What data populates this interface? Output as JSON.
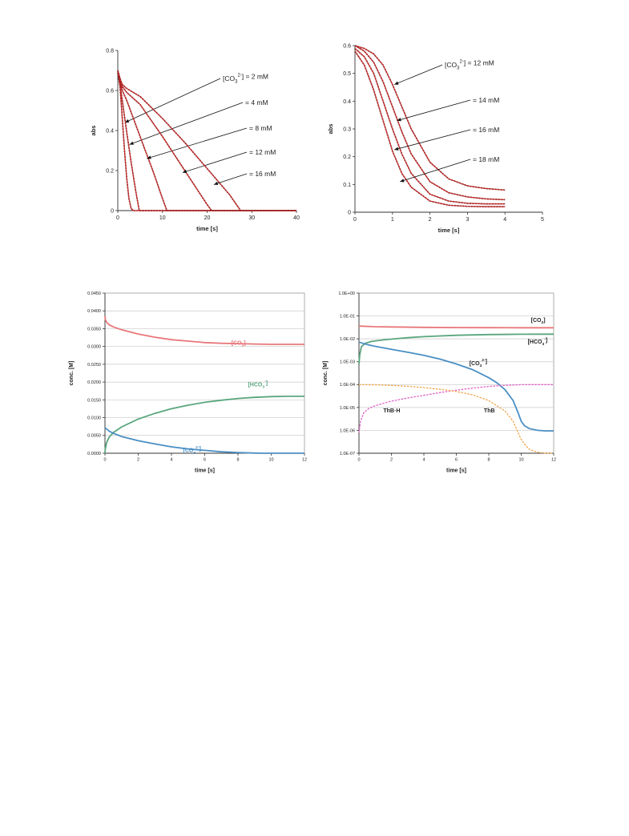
{
  "chart_data": [
    {
      "type": "line",
      "xlabel": "time [s]",
      "ylabel": "abs",
      "xlim": [
        0,
        40
      ],
      "ylim": [
        0,
        0.8
      ],
      "x_ticks": [
        "0",
        "10",
        "20",
        "30",
        "40"
      ],
      "y_ticks": [
        "0",
        "0.2",
        "0.4",
        "0.6",
        "0.8"
      ],
      "grid": false,
      "series": [
        {
          "name": "[CO3 2-] = 2 mM",
          "label_parts": {
            "pre": "[CO",
            "sub": "3",
            "sup": "2-",
            "post": "] = 2 mM"
          },
          "x": [
            0,
            0.5,
            1,
            1.5,
            2,
            2.5,
            3,
            3.5,
            40
          ],
          "y": [
            0.69,
            0.62,
            0.46,
            0.3,
            0.16,
            0.06,
            0.01,
            0.0,
            0.0
          ],
          "arrow_at": [
            1.6,
            0.44
          ]
        },
        {
          "name": "= 4 mM",
          "label_parts": {
            "pre": "= 4 mM"
          },
          "x": [
            0,
            0.5,
            1,
            2,
            3,
            4,
            4.8,
            40
          ],
          "y": [
            0.69,
            0.63,
            0.55,
            0.39,
            0.24,
            0.1,
            0.0,
            0.0
          ],
          "arrow_at": [
            2.6,
            0.33
          ]
        },
        {
          "name": "= 8 mM",
          "label_parts": {
            "pre": "= 8 mM"
          },
          "x": [
            0,
            0.5,
            1,
            2,
            4,
            6,
            8,
            10,
            11,
            40
          ],
          "y": [
            0.7,
            0.65,
            0.6,
            0.55,
            0.43,
            0.31,
            0.19,
            0.06,
            0.0,
            0.0
          ],
          "arrow_at": [
            6.5,
            0.26
          ]
        },
        {
          "name": "= 12 mM",
          "label_parts": {
            "pre": "= 12 mM"
          },
          "x": [
            0,
            0.5,
            1,
            2,
            5,
            10,
            15,
            20,
            21,
            40
          ],
          "y": [
            0.7,
            0.66,
            0.62,
            0.59,
            0.53,
            0.37,
            0.2,
            0.03,
            0.0,
            0.0
          ],
          "arrow_at": [
            14.5,
            0.19
          ]
        },
        {
          "name": "= 16 mM",
          "label_parts": {
            "pre": "= 16 mM"
          },
          "x": [
            0,
            0.5,
            1,
            2,
            5,
            10,
            15,
            20,
            25,
            27.5,
            40
          ],
          "y": [
            0.7,
            0.66,
            0.63,
            0.61,
            0.57,
            0.46,
            0.34,
            0.21,
            0.08,
            0.0,
            0.0
          ],
          "arrow_at": [
            21.5,
            0.13
          ]
        }
      ]
    },
    {
      "type": "line",
      "xlabel": "time [s]",
      "ylabel": "abs",
      "xlim": [
        0,
        5
      ],
      "ylim": [
        0,
        0.6
      ],
      "x_ticks": [
        "0",
        "1",
        "2",
        "3",
        "4",
        "5"
      ],
      "y_ticks": [
        "0",
        "0.1",
        "0.2",
        "0.3",
        "0.4",
        "0.5",
        "0.6"
      ],
      "grid": false,
      "series": [
        {
          "name": "[CO3 2-] = 12 mM",
          "label_parts": {
            "pre": "[CO",
            "sub": "3",
            "sup": "2-",
            "post": "] = 12 mM"
          },
          "x": [
            0,
            0.25,
            0.5,
            0.75,
            1,
            1.25,
            1.5,
            2,
            2.5,
            3,
            3.5,
            4
          ],
          "y": [
            0.6,
            0.59,
            0.57,
            0.53,
            0.46,
            0.38,
            0.3,
            0.18,
            0.12,
            0.095,
            0.085,
            0.08
          ],
          "arrow_at": [
            1.05,
            0.46
          ]
        },
        {
          "name": "= 14 mM",
          "label_parts": {
            "pre": "= 14 mM"
          },
          "x": [
            0,
            0.25,
            0.5,
            0.75,
            1,
            1.25,
            1.5,
            2,
            2.5,
            3,
            3.5,
            4
          ],
          "y": [
            0.6,
            0.58,
            0.54,
            0.47,
            0.38,
            0.29,
            0.21,
            0.11,
            0.07,
            0.055,
            0.048,
            0.045
          ],
          "arrow_at": [
            1.12,
            0.33
          ]
        },
        {
          "name": "= 16 mM",
          "label_parts": {
            "pre": "= 16 mM"
          },
          "x": [
            0,
            0.25,
            0.5,
            0.75,
            1,
            1.25,
            1.5,
            2,
            2.5,
            3,
            3.5,
            4
          ],
          "y": [
            0.59,
            0.56,
            0.5,
            0.4,
            0.3,
            0.21,
            0.14,
            0.065,
            0.04,
            0.032,
            0.03,
            0.03
          ],
          "arrow_at": [
            1.05,
            0.225
          ]
        },
        {
          "name": "= 18 mM",
          "label_parts": {
            "pre": "= 18 mM"
          },
          "x": [
            0,
            0.25,
            0.5,
            0.75,
            1,
            1.25,
            1.5,
            2,
            2.5,
            3,
            3.5,
            4
          ],
          "y": [
            0.58,
            0.53,
            0.44,
            0.33,
            0.22,
            0.14,
            0.09,
            0.04,
            0.025,
            0.021,
            0.02,
            0.02
          ],
          "arrow_at": [
            1.2,
            0.11
          ]
        }
      ]
    },
    {
      "type": "line",
      "xlabel": "time [s]",
      "ylabel": "conc. [M]",
      "xlim": [
        0,
        12
      ],
      "ylim": [
        0,
        0.045
      ],
      "x_ticks": [
        "0",
        "2",
        "4",
        "6",
        "8",
        "10",
        "12"
      ],
      "y_ticks": [
        "0.0000",
        "0.0050",
        "0.0100",
        "0.0150",
        "0.0200",
        "0.0250",
        "0.0300",
        "0.0350",
        "0.0400",
        "0.0450"
      ],
      "grid": true,
      "series": [
        {
          "name": "[CO2]",
          "label_parts": {
            "pre": "[CO",
            "sub": "2",
            "post": "]"
          },
          "color": "#e8777a",
          "x": [
            0,
            0.02,
            0.1,
            0.25,
            0.5,
            1,
            2,
            3,
            4,
            5,
            6,
            7,
            8,
            9,
            10,
            11,
            12
          ],
          "y": [
            0.0385,
            0.0376,
            0.0368,
            0.0361,
            0.0355,
            0.0347,
            0.0335,
            0.0326,
            0.0319,
            0.0315,
            0.0311,
            0.0309,
            0.0308,
            0.0307,
            0.0306,
            0.0306,
            0.0306
          ],
          "label_at": [
            7.6,
            0.0305
          ]
        },
        {
          "name": "[HCO3-]",
          "label_parts": {
            "pre": "[HCO",
            "sub": "3",
            "sup": "-",
            "post": "]"
          },
          "color": "#5aa67e",
          "x": [
            0,
            0.02,
            0.1,
            0.25,
            0.5,
            1,
            2,
            3,
            4,
            5,
            6,
            7,
            8,
            9,
            10,
            11,
            12
          ],
          "y": [
            0.0,
            0.0012,
            0.003,
            0.0045,
            0.0058,
            0.0074,
            0.0096,
            0.0112,
            0.0125,
            0.0135,
            0.0143,
            0.0149,
            0.0154,
            0.0157,
            0.0159,
            0.016,
            0.016
          ],
          "label_at": [
            8.6,
            0.0188
          ]
        },
        {
          "name": "[CO3 2-]",
          "label_parts": {
            "pre": "[CO",
            "sub": "3",
            "sup": "2-",
            "post": "]"
          },
          "color": "#4a8fc4",
          "x": [
            0,
            0.25,
            0.5,
            1,
            2,
            3,
            4,
            5,
            6,
            7,
            8,
            9,
            9.5,
            10,
            12
          ],
          "y": [
            0.0072,
            0.0062,
            0.0056,
            0.0047,
            0.0035,
            0.0026,
            0.0018,
            0.0012,
            0.0008,
            0.0004,
            0.0002,
            5e-05,
            0.0,
            0.0,
            0.0
          ],
          "label_at": [
            4.7,
            0.0003
          ]
        }
      ]
    },
    {
      "type": "line",
      "xlabel": "time [s]",
      "ylabel": "conc. [M]",
      "xlim": [
        0,
        12
      ],
      "ylim": [
        1e-07,
        1
      ],
      "yscale": "log",
      "x_ticks": [
        "0",
        "2",
        "4",
        "6",
        "8",
        "10",
        "12"
      ],
      "y_ticks": [
        "1.0E-07",
        "1.0E-06",
        "1.0E-05",
        "1.0E-04",
        "1.0E-03",
        "1.0E-02",
        "1.0E-01",
        "1.0E+00"
      ],
      "grid": true,
      "series": [
        {
          "name": "[CO2]",
          "label_parts": {
            "pre": "[CO",
            "sub": "2",
            "post": "]"
          },
          "color": "#e8777a",
          "dash": false,
          "x": [
            0,
            1,
            2,
            4,
            6,
            8,
            10,
            12
          ],
          "y": [
            0.036,
            0.034,
            0.0332,
            0.0318,
            0.0311,
            0.0308,
            0.0306,
            0.0306
          ],
          "label_at": [
            10.6,
            0.055
          ]
        },
        {
          "name": "[HCO3-]",
          "label_parts": {
            "pre": "[HCO",
            "sub": "3",
            "sup": "-",
            "post": "]"
          },
          "color": "#5aa67e",
          "dash": false,
          "x": [
            0,
            0.05,
            0.15,
            0.4,
            0.8,
            1.5,
            2,
            3,
            4,
            6,
            8,
            10,
            12
          ],
          "y": [
            0.0008,
            0.002,
            0.0045,
            0.0065,
            0.0078,
            0.009,
            0.0097,
            0.0112,
            0.0125,
            0.0143,
            0.0154,
            0.0159,
            0.016
          ],
          "label_at": [
            10.4,
            0.0062
          ]
        },
        {
          "name": "[CO3 2-]",
          "label_parts": {
            "pre": "[CO",
            "sub": "3",
            "sup": "2-",
            "post": "]"
          },
          "color": "#4a8fc4",
          "dash": false,
          "x": [
            0,
            0.5,
            1,
            2,
            3,
            4,
            5,
            6,
            7,
            8,
            8.5,
            9,
            9.5,
            9.8,
            10,
            10.2,
            10.5,
            11,
            11.5,
            12
          ],
          "y": [
            0.0072,
            0.0056,
            0.0047,
            0.0035,
            0.0026,
            0.0019,
            0.0013,
            0.0008,
            0.00045,
            0.0002,
            0.00012,
            6e-05,
            2e-05,
            6e-06,
            2.5e-06,
            1.6e-06,
            1.2e-06,
            1e-06,
            9.5e-07,
            9.5e-07
          ],
          "label_at": [
            6.8,
            0.00072
          ]
        },
        {
          "name": "ThB·H",
          "label_parts": {
            "pre": "ThB·H"
          },
          "color": "#e060c8",
          "dash": true,
          "x": [
            0,
            0.1,
            0.3,
            0.6,
            1,
            2,
            3,
            4,
            5,
            6,
            7,
            8,
            9,
            10,
            10.5,
            11,
            12
          ],
          "y": [
            8e-07,
            2.5e-06,
            6e-06,
            9e-06,
            1.2e-05,
            1.9e-05,
            2.6e-05,
            3.4e-05,
            4.5e-05,
            5.7e-05,
            7e-05,
            8.3e-05,
            9.3e-05,
            9.9e-05,
            0.0001,
            0.0001,
            0.0001
          ],
          "label_at": [
            1.5,
            6.2e-06
          ]
        },
        {
          "name": "ThB",
          "label_parts": {
            "pre": "ThB"
          },
          "color": "#f0a64a",
          "dash": true,
          "x": [
            0,
            1,
            2,
            3,
            4,
            5,
            6,
            7,
            8,
            9,
            9.5,
            9.8,
            10,
            10.2,
            10.5,
            11,
            11.5,
            12
          ],
          "y": [
            0.0001,
            9.8e-05,
            9.2e-05,
            8.4e-05,
            7.4e-05,
            6.2e-05,
            5e-05,
            3.6e-05,
            2e-05,
            7e-06,
            2.5e-06,
            8e-07,
            4e-07,
            2.5e-07,
            1.5e-07,
            1.1e-07,
            1e-07,
            1e-07
          ],
          "label_at": [
            7.7,
            6.2e-06
          ]
        }
      ]
    }
  ]
}
